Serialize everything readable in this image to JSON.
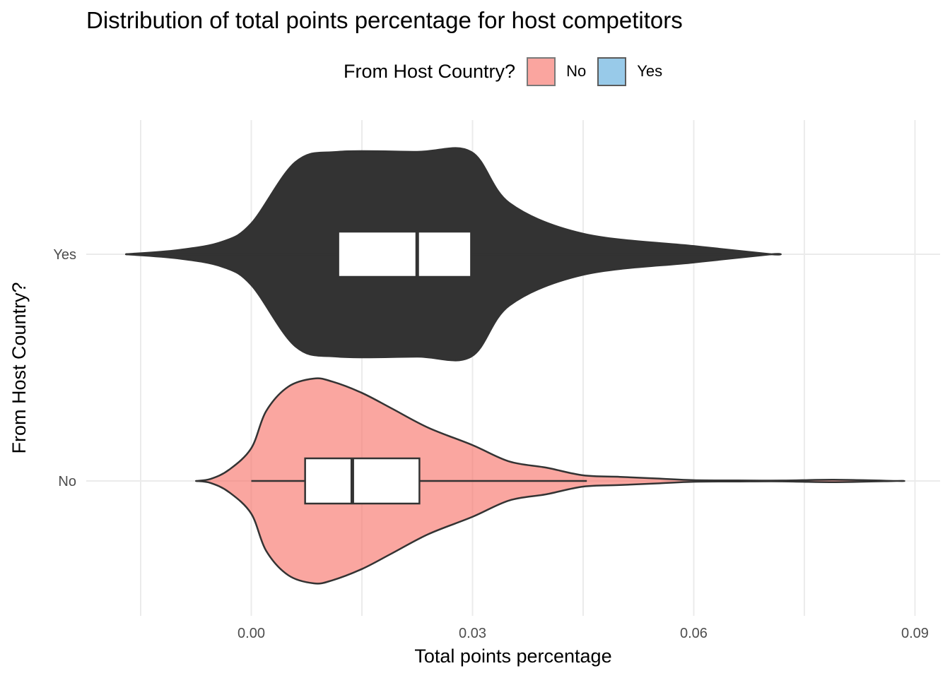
{
  "chart_data": {
    "type": "violin",
    "title": "Distribution of total points percentage for host competitors",
    "xlabel": "Total points percentage",
    "ylabel": "From Host Country?",
    "xlim": [
      -0.019,
      0.09
    ],
    "x_ticks": [
      "0.00",
      "0.03",
      "0.06",
      "0.09"
    ],
    "x_tick_values": [
      0.0,
      0.03,
      0.06,
      0.09
    ],
    "categories": [
      "Yes",
      "No"
    ],
    "grid": true,
    "legend": {
      "title": "From Host Country?",
      "position": "top",
      "entries": [
        {
          "label": "No",
          "color": "#F8766D"
        },
        {
          "label": "Yes",
          "color": "#00BFC4"
        }
      ]
    },
    "series": [
      {
        "name": "Yes",
        "fill": "#00BFC4",
        "violin": {
          "x": [
            -0.017,
            -0.01,
            -0.004,
            0.0,
            0.006,
            0.0118,
            0.0225,
            0.0298,
            0.035,
            0.045,
            0.06,
            0.0705
          ],
          "density": [
            0.0,
            0.04,
            0.12,
            0.3,
            0.9,
            1.0,
            1.0,
            1.0,
            0.5,
            0.2,
            0.08,
            0.0
          ]
        },
        "box": {
          "min": -0.017,
          "q1": 0.0118,
          "median": 0.0225,
          "q3": 0.0298,
          "max": 0.0705
        }
      },
      {
        "name": "No",
        "fill": "#F8766D",
        "violin": {
          "x": [
            -0.0075,
            -0.0055,
            -0.003,
            0.0,
            0.002,
            0.005,
            0.0085,
            0.011,
            0.015,
            0.019,
            0.024,
            0.03,
            0.035,
            0.04,
            0.045,
            0.05,
            0.055,
            0.06,
            0.066,
            0.072,
            0.079,
            0.0875
          ],
          "density": [
            0.0,
            0.02,
            0.11,
            0.32,
            0.68,
            0.92,
            1.0,
            0.97,
            0.86,
            0.71,
            0.52,
            0.35,
            0.19,
            0.13,
            0.055,
            0.04,
            0.024,
            0.008,
            0.005,
            0.004,
            0.012,
            0.0
          ]
        },
        "box": {
          "min": 0.0,
          "q1": 0.0073,
          "median": 0.0137,
          "q3": 0.0228,
          "max": 0.0455
        }
      }
    ]
  }
}
